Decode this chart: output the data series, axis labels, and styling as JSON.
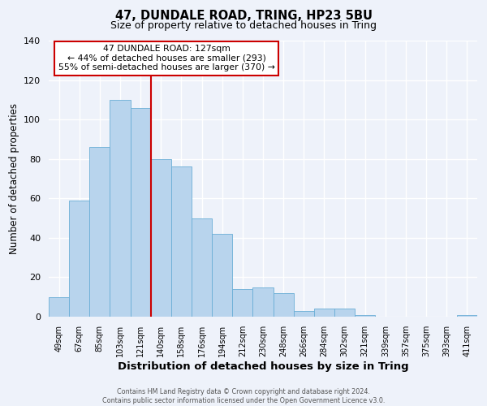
{
  "title": "47, DUNDALE ROAD, TRING, HP23 5BU",
  "subtitle": "Size of property relative to detached houses in Tring",
  "xlabel": "Distribution of detached houses by size in Tring",
  "ylabel": "Number of detached properties",
  "bin_labels": [
    "49sqm",
    "67sqm",
    "85sqm",
    "103sqm",
    "121sqm",
    "140sqm",
    "158sqm",
    "176sqm",
    "194sqm",
    "212sqm",
    "230sqm",
    "248sqm",
    "266sqm",
    "284sqm",
    "302sqm",
    "321sqm",
    "339sqm",
    "357sqm",
    "375sqm",
    "393sqm",
    "411sqm"
  ],
  "bar_heights": [
    10,
    59,
    86,
    110,
    106,
    80,
    76,
    50,
    42,
    14,
    15,
    12,
    3,
    4,
    4,
    1,
    0,
    0,
    0,
    0,
    1
  ],
  "bar_color": "#b8d4ed",
  "bar_edgecolor": "#6aaed6",
  "vline_x": 4.5,
  "vline_color": "#cc0000",
  "ylim": [
    0,
    140
  ],
  "yticks": [
    0,
    20,
    40,
    60,
    80,
    100,
    120,
    140
  ],
  "annotation_title": "47 DUNDALE ROAD: 127sqm",
  "annotation_line1": "← 44% of detached houses are smaller (293)",
  "annotation_line2": "55% of semi-detached houses are larger (370) →",
  "annotation_box_color": "#ffffff",
  "annotation_box_edgecolor": "#cc0000",
  "footer_line1": "Contains HM Land Registry data © Crown copyright and database right 2024.",
  "footer_line2": "Contains public sector information licensed under the Open Government Licence v3.0.",
  "background_color": "#eef2fa",
  "grid_color": "#ffffff",
  "title_fontsize": 10.5,
  "subtitle_fontsize": 9,
  "xlabel_fontsize": 9.5,
  "ylabel_fontsize": 8.5,
  "footer_fontsize": 5.8
}
